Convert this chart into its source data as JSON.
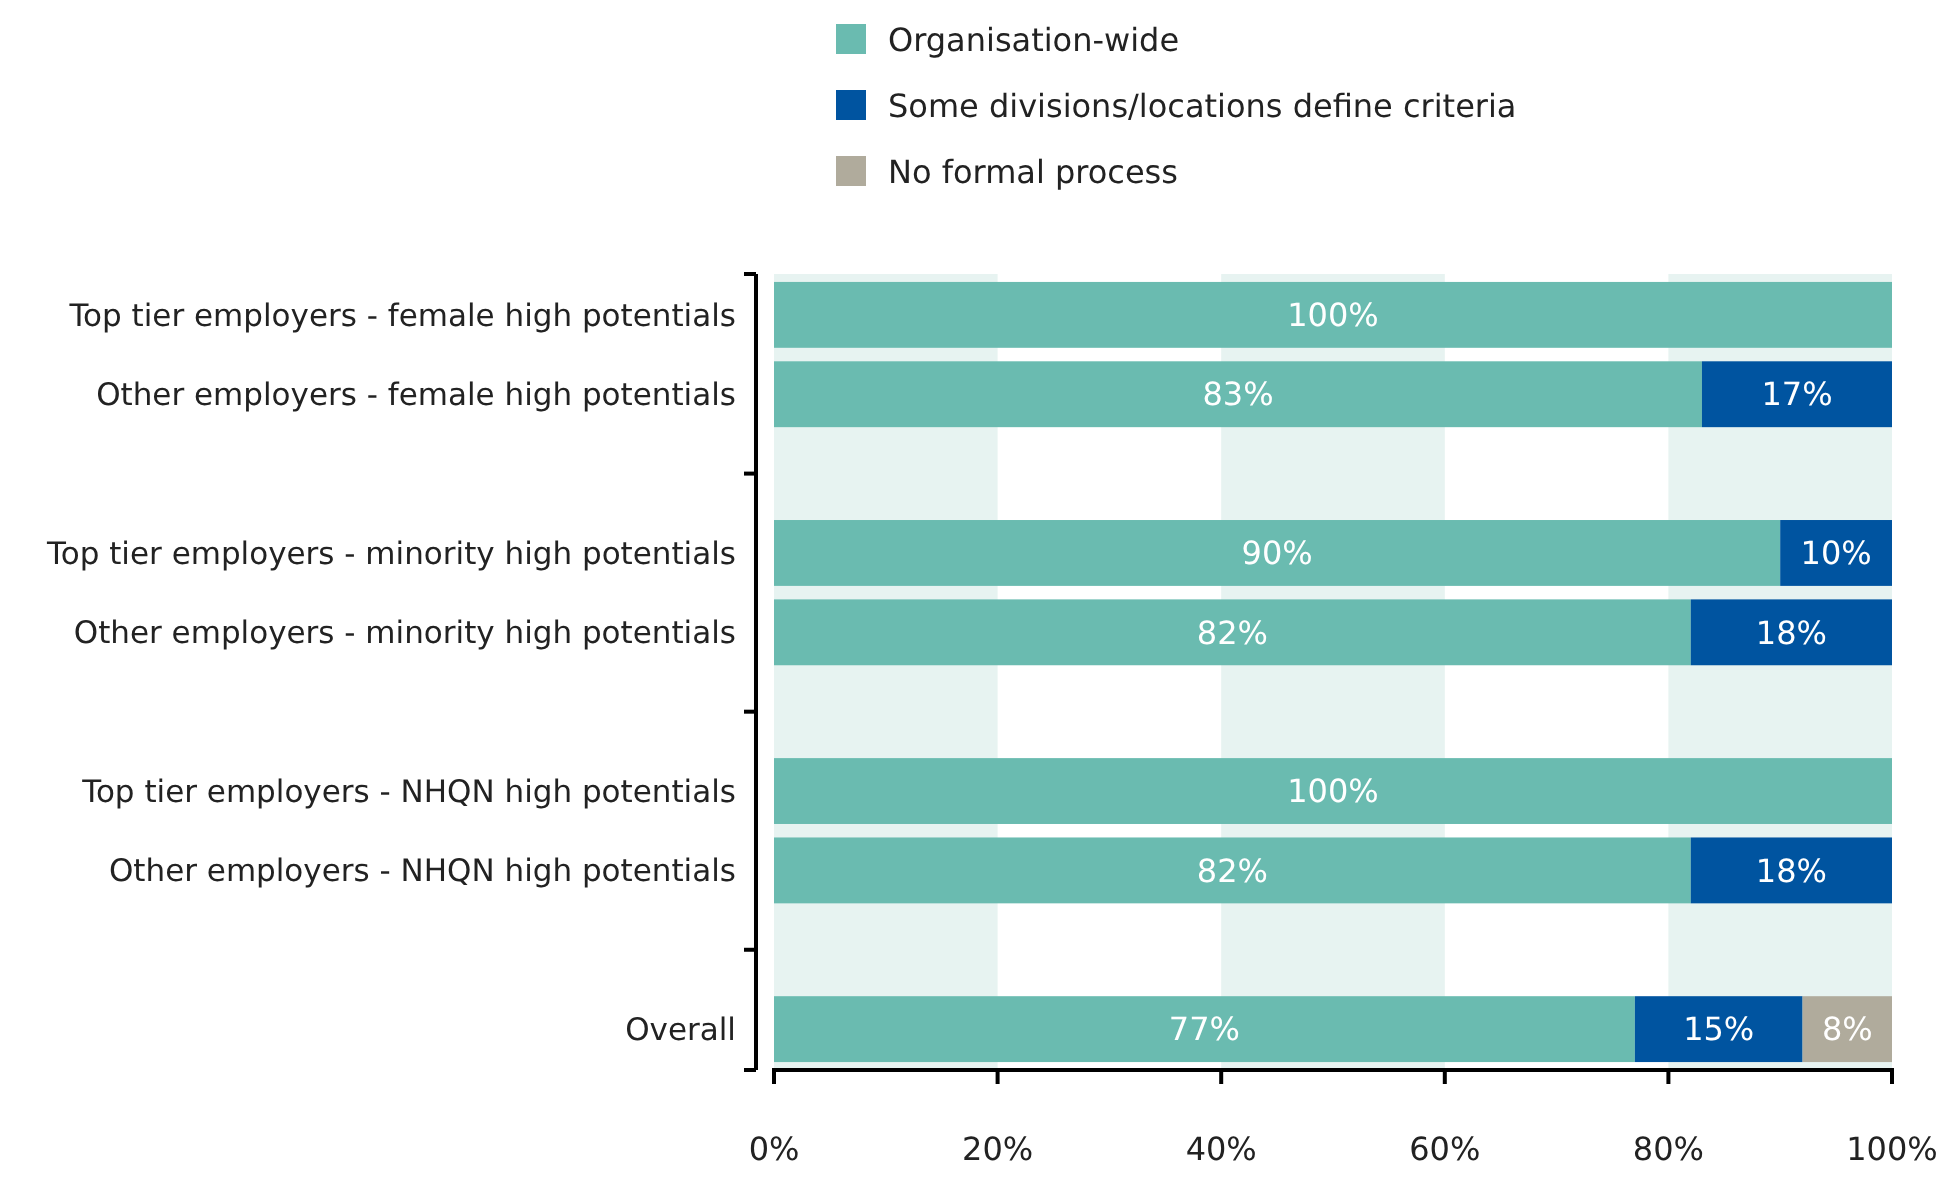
{
  "chart_data": {
    "type": "bar",
    "orientation": "horizontal",
    "stacked": true,
    "categories": [
      "Top tier employers - female high potentials",
      "Other employers - female high potentials",
      null,
      "Top tier employers - minority high potentials",
      "Other employers - minority high potentials",
      null,
      "Top tier employers - NHQN high potentials",
      "Other employers - NHQN high potentials",
      null,
      "Overall"
    ],
    "series": [
      {
        "name": "Organisation-wide",
        "color": "#6abbb0",
        "values": [
          100,
          83,
          null,
          90,
          82,
          null,
          100,
          82,
          null,
          77
        ],
        "value_labels": [
          "100%",
          "83%",
          null,
          "90%",
          "82%",
          null,
          "100%",
          "82%",
          null,
          "77%"
        ]
      },
      {
        "name": "Some divisions/locations define criteria",
        "color": "#0054a0",
        "values": [
          null,
          17,
          null,
          10,
          18,
          null,
          null,
          18,
          null,
          15
        ],
        "value_labels": [
          null,
          "17%",
          null,
          "10%",
          "18%",
          null,
          null,
          "18%",
          null,
          "15%"
        ]
      },
      {
        "name": "No formal process",
        "color": "#b0ab9c",
        "values": [
          null,
          null,
          null,
          null,
          null,
          null,
          null,
          null,
          null,
          8
        ],
        "value_labels": [
          null,
          null,
          null,
          null,
          null,
          null,
          null,
          null,
          null,
          "8%"
        ]
      }
    ],
    "xlim": [
      0,
      100
    ],
    "xticks": [
      {
        "value": 0,
        "label": "0%"
      },
      {
        "value": 20,
        "label": "20%"
      },
      {
        "value": 40,
        "label": "40%"
      },
      {
        "value": 60,
        "label": "60%"
      },
      {
        "value": 80,
        "label": "80%"
      },
      {
        "value": 100,
        "label": "100%"
      }
    ],
    "bands": [
      {
        "axis": "x",
        "from": 0,
        "to": 20,
        "color": "#e7f3f1"
      },
      {
        "axis": "x",
        "from": 40,
        "to": 60,
        "color": "#e7f3f1"
      },
      {
        "axis": "x",
        "from": 80,
        "to": 100,
        "color": "#e7f3f1"
      }
    ],
    "legend": "top"
  }
}
